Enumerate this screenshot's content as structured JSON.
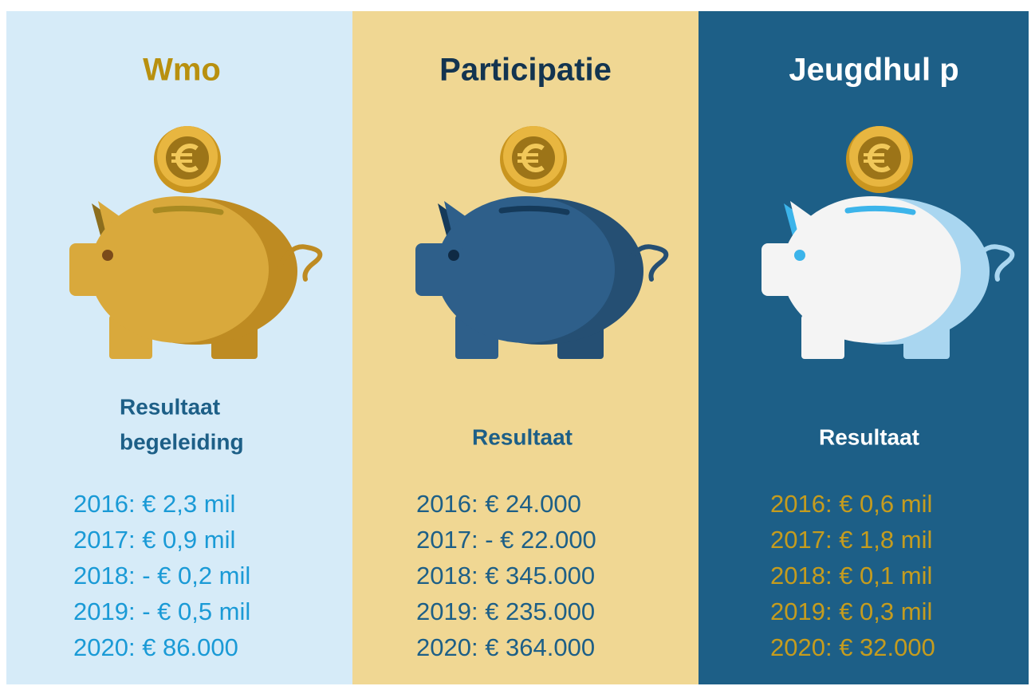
{
  "panels": [
    {
      "title": "Wmo",
      "subtitle": [
        "Resultaat",
        "begeleiding"
      ],
      "values": [
        "2016: € 2,3 mil",
        "2017: € 0,9 mil",
        "2018: - € 0,2 mil",
        "2019: - € 0,5 mil",
        "2020: € 86.000"
      ]
    },
    {
      "title": "Participatie",
      "subtitle": [
        "Resultaat"
      ],
      "values": [
        "2016: € 24.000",
        "2017: - € 22.000",
        "2018: € 345.000",
        "2019: € 235.000",
        "2020: € 364.000"
      ]
    },
    {
      "title": "Jeugdhul p",
      "subtitle": [
        "Resultaat"
      ],
      "values": [
        "2016: € 0,6 mil",
        "2017: € 1,8 mil",
        "2018: € 0,1 mil",
        "2019: € 0,3 mil",
        "2020: € 32.000"
      ]
    }
  ]
}
